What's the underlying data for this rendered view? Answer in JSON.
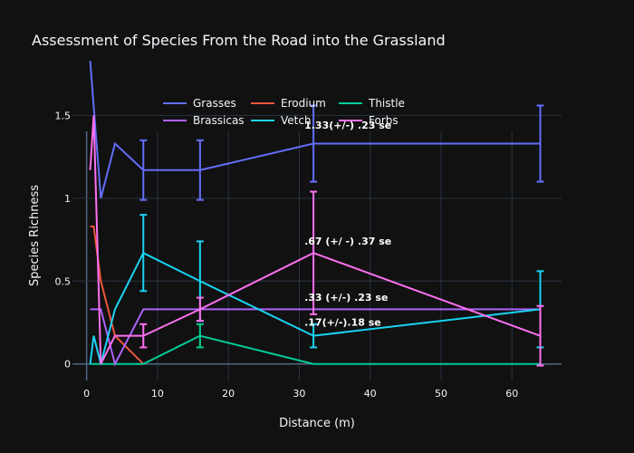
{
  "chart_data": {
    "type": "line",
    "title": "Assessment of Species From the Road into the Grassland",
    "xlabel": "Distance (m)",
    "ylabel": "Species Richness",
    "xlim": [
      -2,
      67
    ],
    "ylim": [
      -0.1,
      1.65
    ],
    "x_ticks": [
      0,
      10,
      20,
      30,
      40,
      50,
      60
    ],
    "y_ticks": [
      0,
      0.5,
      1,
      1.5
    ],
    "y_tick_labels": [
      "0",
      "0.5",
      "1",
      "1.5"
    ],
    "grid": true,
    "legend_position": "top-left",
    "series": [
      {
        "name": "Grasses",
        "color": "#636efa",
        "x": [
          0.5,
          2,
          4,
          8,
          16,
          32,
          64
        ],
        "y": [
          1.83,
          1.0,
          1.33,
          1.17,
          1.17,
          1.33,
          1.33
        ],
        "err": [
          0,
          0,
          0,
          0.18,
          0.18,
          0.23,
          0.23
        ]
      },
      {
        "name": "Erodium",
        "color": "#ef553b",
        "x": [
          0.5,
          1,
          2,
          4,
          8
        ],
        "y": [
          0.83,
          0.83,
          0.5,
          0.17,
          0
        ],
        "err": [
          0,
          0,
          0,
          0,
          0
        ]
      },
      {
        "name": "Thistle",
        "color": "#00cc96",
        "x": [
          0.5,
          2,
          8,
          16,
          32,
          64
        ],
        "y": [
          0,
          0,
          0,
          0.17,
          0,
          0
        ],
        "err": [
          0,
          0,
          0,
          0.07,
          0,
          0
        ]
      },
      {
        "name": "Brassicas",
        "color": "#ab63fa",
        "x": [
          0.5,
          2,
          4,
          8,
          16,
          32,
          64
        ],
        "y": [
          0.33,
          0.33,
          0,
          0.33,
          0.33,
          0.33,
          0.33
        ],
        "err": [
          0,
          0,
          0,
          0,
          0,
          0,
          0
        ]
      },
      {
        "name": "Vetch",
        "color": "#19d3f3",
        "x": [
          0.5,
          1,
          2,
          4,
          8,
          16,
          32,
          64
        ],
        "y": [
          0,
          0.17,
          0,
          0.33,
          0.67,
          0.5,
          0.17,
          0.33
        ],
        "err": [
          0,
          0,
          0,
          0,
          0.23,
          0.24,
          0.07,
          0.23
        ]
      },
      {
        "name": "Forbs",
        "color": "#ff6ff0",
        "x": [
          0.5,
          1,
          2,
          4,
          8,
          16,
          32,
          64
        ],
        "y": [
          1.17,
          1.5,
          0,
          0.17,
          0.17,
          0.33,
          0.67,
          0.17
        ],
        "err": [
          0,
          0,
          0,
          0,
          0.07,
          0.07,
          0.37,
          0.18
        ]
      }
    ],
    "annotations": [
      {
        "text": "1.33(+/-) .23 se",
        "x": 32,
        "y": 1.42
      },
      {
        "text": ".67 (+/ -) .37 se",
        "x": 32,
        "y": 0.72
      },
      {
        "text": ".33 (+/-) .23 se",
        "x": 32,
        "y": 0.38
      },
      {
        "text": ".17(+/-).18 se",
        "x": 32,
        "y": 0.23
      }
    ]
  }
}
